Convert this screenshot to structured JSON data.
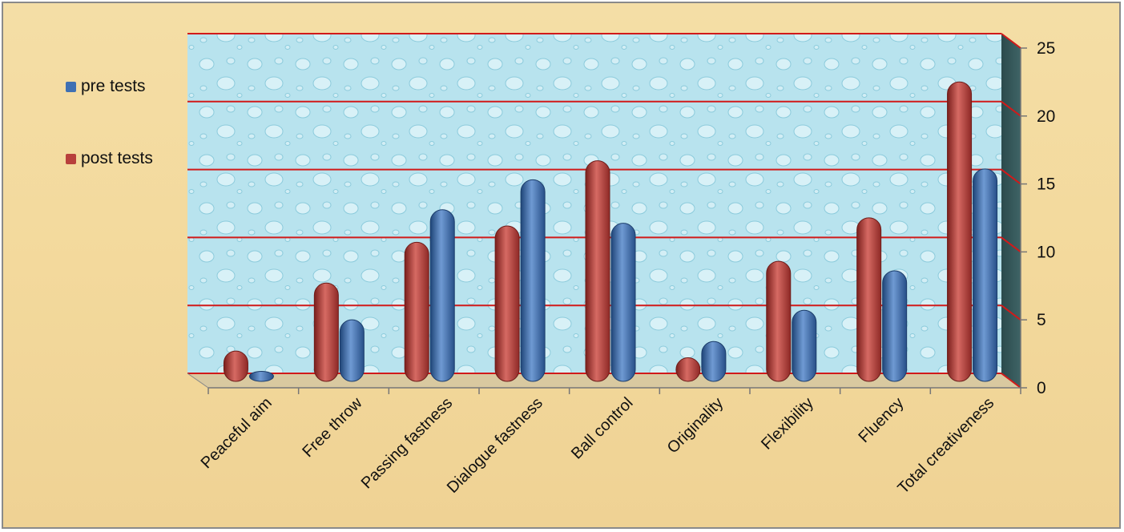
{
  "chart_data": {
    "type": "bar",
    "categories": [
      "Peaceful aim",
      "Free throw",
      "Passing fastness",
      "Dialogue fastness",
      "Ball control",
      "Originality",
      "Flexibility",
      "Fluency",
      "Total creativeness"
    ],
    "series": [
      {
        "name": "post tests",
        "color": "#b8403c",
        "values": [
          2,
          7,
          10,
          11.2,
          16,
          1.5,
          8.6,
          11.8,
          21.8
        ]
      },
      {
        "name": "pre tests",
        "color": "#3f70b3",
        "values": [
          0.5,
          4.3,
          12.4,
          14.6,
          11.4,
          2.7,
          5,
          7.9,
          15.4
        ]
      }
    ],
    "legend": [
      {
        "name": "pre tests",
        "color": "#3f70b3"
      },
      {
        "name": "post tests",
        "color": "#b8403c"
      }
    ],
    "yticks": [
      "0",
      "5",
      "10",
      "15",
      "20",
      "25"
    ],
    "ylim": [
      0,
      25
    ],
    "grid": true,
    "gridline_color": "#d11a1a",
    "legend_position": "left",
    "y_axis_side": "right"
  }
}
